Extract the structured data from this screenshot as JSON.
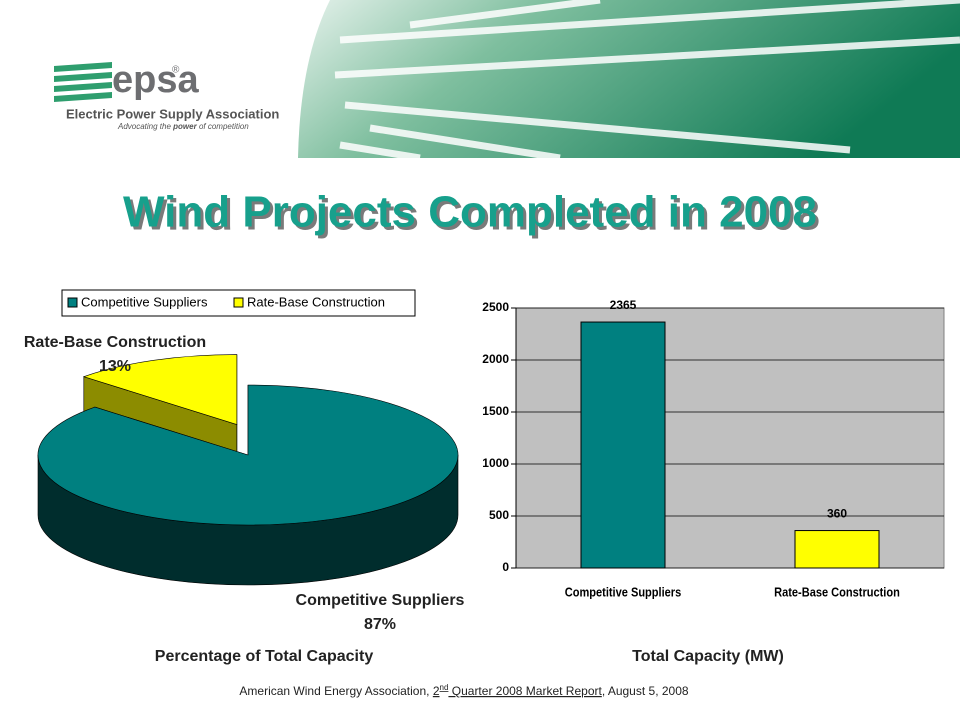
{
  "logo": {
    "name": "epsa",
    "mark": "®",
    "org": "Electric Power Supply Association",
    "tagline": [
      "Advocating the ",
      "power",
      " of competition"
    ]
  },
  "title": "Wind Projects Completed in 2008",
  "source": [
    "American Wind Energy Association, ",
    "2",
    "nd",
    " Quarter 2008 Market Report",
    ", August 5, 2008"
  ],
  "chart_data": [
    {
      "type": "pie",
      "xlabel": "Percentage of Total Capacity",
      "categories": [
        "Competitive Suppliers",
        "Rate-Base Construction"
      ],
      "values": [
        87,
        13
      ],
      "value_labels": [
        "87%",
        "13%"
      ],
      "colors": [
        "#008080",
        "#ffff00"
      ],
      "legend": "top"
    },
    {
      "type": "bar",
      "xlabel": "Total Capacity (MW)",
      "categories": [
        "Competitive Suppliers",
        "Rate-Base Construction"
      ],
      "values": [
        2365,
        360
      ],
      "colors": [
        "#008080",
        "#ffff00"
      ],
      "ylim": [
        0,
        2500
      ],
      "yticks": [
        0,
        500,
        1000,
        1500,
        2000,
        2500
      ],
      "grid": true
    }
  ]
}
